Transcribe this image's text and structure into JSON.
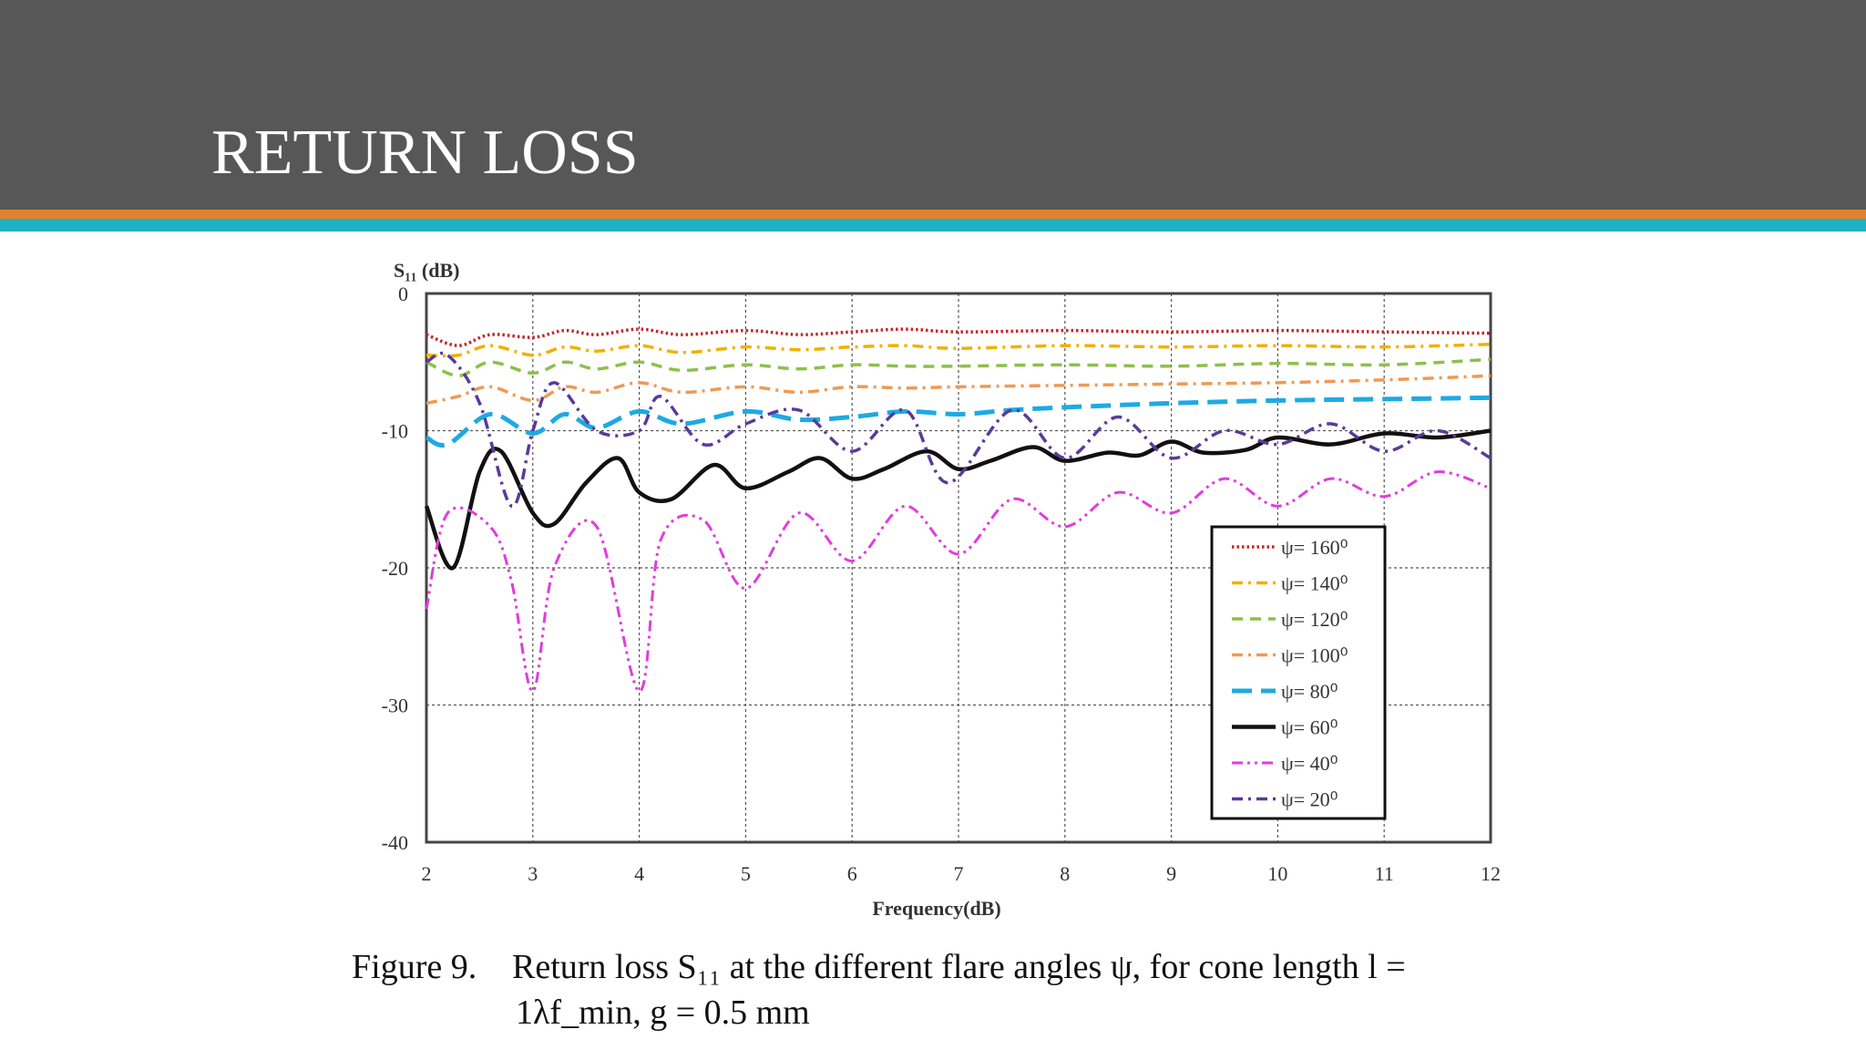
{
  "slide": {
    "title": "RETURN LOSS"
  },
  "colors": {
    "header": "#575757",
    "stripe_orange": "#e2822f",
    "stripe_teal": "#1fb1c1"
  },
  "caption": {
    "label": "Figure 9.",
    "line1": "Return loss S₁₁ at the different flare angles ψ, for cone length l =",
    "line2": "1λf_min, g = 0.5 mm"
  },
  "chart_data": {
    "type": "line",
    "ylabel": "S₁₁ (dB)",
    "xlabel": "Frequency(dB)",
    "xlim": [
      2,
      12
    ],
    "ylim": [
      -40,
      0
    ],
    "xticks": [
      "2",
      "3",
      "4",
      "5",
      "6",
      "7",
      "8",
      "9",
      "10",
      "11",
      "12"
    ],
    "yticks": [
      "0",
      "-10",
      "-20",
      "-30",
      "-40"
    ],
    "grid": true,
    "legend_position": "right-lower",
    "series": [
      {
        "name": "ψ= 160⁰",
        "color": "#c0282b",
        "dash": "dotted",
        "x": [
          2,
          2.3,
          2.6,
          3,
          3.3,
          3.6,
          4,
          4.4,
          5,
          5.5,
          6,
          6.5,
          7,
          8,
          9,
          10,
          11,
          12
        ],
        "y": [
          -3,
          -3.8,
          -3,
          -3.2,
          -2.7,
          -3,
          -2.6,
          -3,
          -2.7,
          -3,
          -2.8,
          -2.6,
          -2.8,
          -2.7,
          -2.8,
          -2.7,
          -2.8,
          -2.9
        ]
      },
      {
        "name": "ψ= 140⁰",
        "color": "#f2b000",
        "dash": "dashdot",
        "x": [
          2,
          2.3,
          2.6,
          3,
          3.3,
          3.6,
          4,
          4.4,
          5,
          5.5,
          6,
          6.5,
          7,
          8,
          9,
          10,
          11,
          12
        ],
        "y": [
          -4.5,
          -4.5,
          -3.8,
          -4.5,
          -3.9,
          -4.2,
          -3.8,
          -4.3,
          -3.9,
          -4.1,
          -3.9,
          -3.8,
          -4,
          -3.8,
          -3.9,
          -3.8,
          -3.9,
          -3.7
        ]
      },
      {
        "name": "ψ= 120⁰",
        "color": "#8cc04a",
        "dash": "dashed",
        "x": [
          2,
          2.3,
          2.6,
          3,
          3.3,
          3.6,
          4,
          4.4,
          5,
          5.5,
          6,
          6.5,
          7,
          8,
          9,
          10,
          11,
          12
        ],
        "y": [
          -5,
          -6,
          -5,
          -5.8,
          -5,
          -5.5,
          -5,
          -5.6,
          -5.2,
          -5.5,
          -5.2,
          -5.3,
          -5.3,
          -5.2,
          -5.3,
          -5.1,
          -5.2,
          -4.8
        ]
      },
      {
        "name": "ψ= 100⁰",
        "color": "#ee9a55",
        "dash": "dashdot",
        "x": [
          2,
          2.3,
          2.6,
          3,
          3.3,
          3.6,
          4,
          4.4,
          5,
          5.5,
          6,
          6.5,
          7,
          8,
          9,
          10,
          11,
          12
        ],
        "y": [
          -8,
          -7.5,
          -6.8,
          -7.8,
          -6.8,
          -7.2,
          -6.5,
          -7.2,
          -6.8,
          -7.2,
          -6.8,
          -6.9,
          -6.8,
          -6.7,
          -6.6,
          -6.5,
          -6.3,
          -6
        ]
      },
      {
        "name": "ψ= 80⁰",
        "color": "#1ea9e3",
        "dash": "longdash",
        "x": [
          2,
          2.2,
          2.6,
          3,
          3.3,
          3.6,
          4,
          4.4,
          5,
          5.5,
          6,
          6.5,
          7,
          7.5,
          8,
          9,
          10,
          11,
          12
        ],
        "y": [
          -10.5,
          -11,
          -8.8,
          -10.2,
          -8.8,
          -9.8,
          -8.6,
          -9.5,
          -8.6,
          -9.2,
          -9,
          -8.6,
          -8.8,
          -8.5,
          -8.3,
          -8,
          -7.8,
          -7.7,
          -7.6
        ]
      },
      {
        "name": "ψ= 60⁰",
        "color": "#111111",
        "dash": "solid",
        "x": [
          2,
          2.25,
          2.5,
          2.7,
          3,
          3.2,
          3.5,
          3.8,
          4,
          4.3,
          4.7,
          5,
          5.4,
          5.7,
          6,
          6.3,
          6.7,
          7,
          7.3,
          7.7,
          8,
          8.4,
          8.7,
          9,
          9.3,
          9.7,
          10,
          10.5,
          11,
          11.5,
          12
        ],
        "y": [
          -15.5,
          -20,
          -13,
          -11.5,
          -16,
          -16.8,
          -13.8,
          -12,
          -14.5,
          -15,
          -12.5,
          -14.2,
          -13,
          -12,
          -13.5,
          -12.8,
          -11.5,
          -12.8,
          -12.2,
          -11.2,
          -12.2,
          -11.6,
          -11.8,
          -10.8,
          -11.6,
          -11.4,
          -10.5,
          -11,
          -10.2,
          -10.5,
          -10
        ]
      },
      {
        "name": "ψ= 40⁰",
        "color": "#e03ddd",
        "dash": "dashdotdot",
        "x": [
          2,
          2.2,
          2.6,
          2.8,
          3,
          3.2,
          3.6,
          4,
          4.2,
          4.6,
          5,
          5.5,
          6,
          6.5,
          7,
          7.5,
          8,
          8.5,
          9,
          9.5,
          10,
          10.5,
          11,
          11.5,
          12
        ],
        "y": [
          -23,
          -16,
          -17,
          -21,
          -29,
          -20,
          -17,
          -29,
          -18,
          -16.5,
          -21.5,
          -16,
          -19.5,
          -15.5,
          -19,
          -15,
          -17,
          -14.5,
          -16,
          -13.5,
          -15.5,
          -13.5,
          -14.8,
          -13,
          -14.2
        ]
      },
      {
        "name": "ψ= 20⁰",
        "color": "#5a3a9a",
        "dash": "dashdot",
        "x": [
          2,
          2.2,
          2.5,
          2.8,
          3,
          3.2,
          3.6,
          4,
          4.2,
          4.6,
          5,
          5.5,
          6,
          6.5,
          6.9,
          7.5,
          8,
          8.5,
          9,
          9.5,
          10,
          10.5,
          11,
          11.5,
          12
        ],
        "y": [
          -5,
          -4.5,
          -8,
          -15.5,
          -10,
          -6.5,
          -10,
          -10,
          -7.5,
          -11,
          -9.5,
          -8.5,
          -11.5,
          -8.5,
          -13.8,
          -8.5,
          -12,
          -9,
          -12,
          -10,
          -11,
          -9.5,
          -11.5,
          -10,
          -12
        ]
      }
    ]
  }
}
